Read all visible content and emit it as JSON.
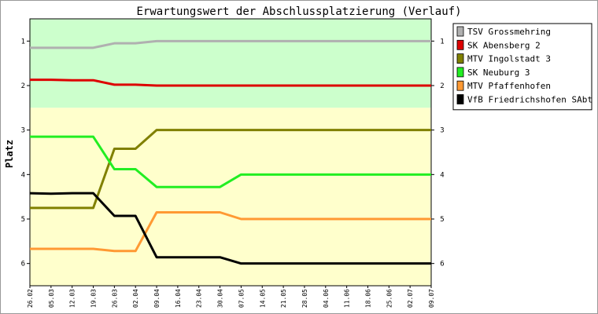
{
  "chart_data": {
    "type": "line",
    "title": "Erwartungswert der Abschlussplatzierung (Verlauf)",
    "ylabel": "Platz",
    "xlabel": "",
    "ylim": [
      0.5,
      6.5
    ],
    "y_inverted": true,
    "y_ticks": [
      "1",
      "2",
      "3",
      "4",
      "5",
      "6"
    ],
    "zones": [
      {
        "from": 0.5,
        "to": 2.5,
        "color": "#ccffcc"
      },
      {
        "from": 2.5,
        "to": 6.5,
        "color": "#ffffcc"
      }
    ],
    "legend_position": "right",
    "categories": [
      "26.02",
      "05.03",
      "12.03",
      "19.03",
      "26.03",
      "02.04",
      "09.04",
      "16.04",
      "23.04",
      "30.04",
      "07.05",
      "14.05",
      "21.05",
      "28.05",
      "04.06",
      "11.06",
      "18.06",
      "25.06",
      "02.07",
      "09.07"
    ],
    "x_tick_labels": [
      "26.02",
      "05.03",
      "12.03",
      "19.03",
      "26.03",
      "02.04",
      "09.04",
      "16.04",
      "23.04",
      "30.04",
      "07.05",
      "14.05",
      "21.05",
      "28.05",
      "04.06",
      "11.06",
      "18.06",
      "25.06",
      "02.07",
      "09.07"
    ],
    "series": [
      {
        "name": "TSV Grossmehring",
        "color": "#b0b0b0",
        "values": [
          1.15,
          1.15,
          1.15,
          1.15,
          1.05,
          1.05,
          1.0,
          1.0,
          1.0,
          1.0,
          1.0,
          1.0,
          1.0,
          1.0,
          1.0,
          1.0,
          1.0,
          1.0,
          1.0,
          1.0
        ]
      },
      {
        "name": "SK Abensberg 2",
        "color": "#dd0000",
        "values": [
          1.87,
          1.87,
          1.88,
          1.88,
          1.98,
          1.98,
          2.0,
          2.0,
          2.0,
          2.0,
          2.0,
          2.0,
          2.0,
          2.0,
          2.0,
          2.0,
          2.0,
          2.0,
          2.0,
          2.0
        ]
      },
      {
        "name": "MTV Ingolstadt 3",
        "color": "#808000",
        "values": [
          4.75,
          4.75,
          4.75,
          4.75,
          3.42,
          3.42,
          3.0,
          3.0,
          3.0,
          3.0,
          3.0,
          3.0,
          3.0,
          3.0,
          3.0,
          3.0,
          3.0,
          3.0,
          3.0,
          3.0
        ]
      },
      {
        "name": "SK Neuburg 3",
        "color": "#22ee22",
        "values": [
          3.15,
          3.15,
          3.15,
          3.15,
          3.88,
          3.88,
          4.28,
          4.28,
          4.28,
          4.28,
          4.0,
          4.0,
          4.0,
          4.0,
          4.0,
          4.0,
          4.0,
          4.0,
          4.0,
          4.0
        ]
      },
      {
        "name": "MTV Pfaffenhofen",
        "color": "#ff9933",
        "values": [
          5.67,
          5.67,
          5.67,
          5.67,
          5.72,
          5.72,
          4.85,
          4.85,
          4.85,
          4.85,
          5.0,
          5.0,
          5.0,
          5.0,
          5.0,
          5.0,
          5.0,
          5.0,
          5.0,
          5.0
        ]
      },
      {
        "name": "VfB Friedrichshofen SAbt 2",
        "color": "#000000",
        "values": [
          4.42,
          4.43,
          4.42,
          4.42,
          4.93,
          4.93,
          5.86,
          5.86,
          5.86,
          5.86,
          6.0,
          6.0,
          6.0,
          6.0,
          6.0,
          6.0,
          6.0,
          6.0,
          6.0,
          6.0
        ]
      }
    ]
  }
}
